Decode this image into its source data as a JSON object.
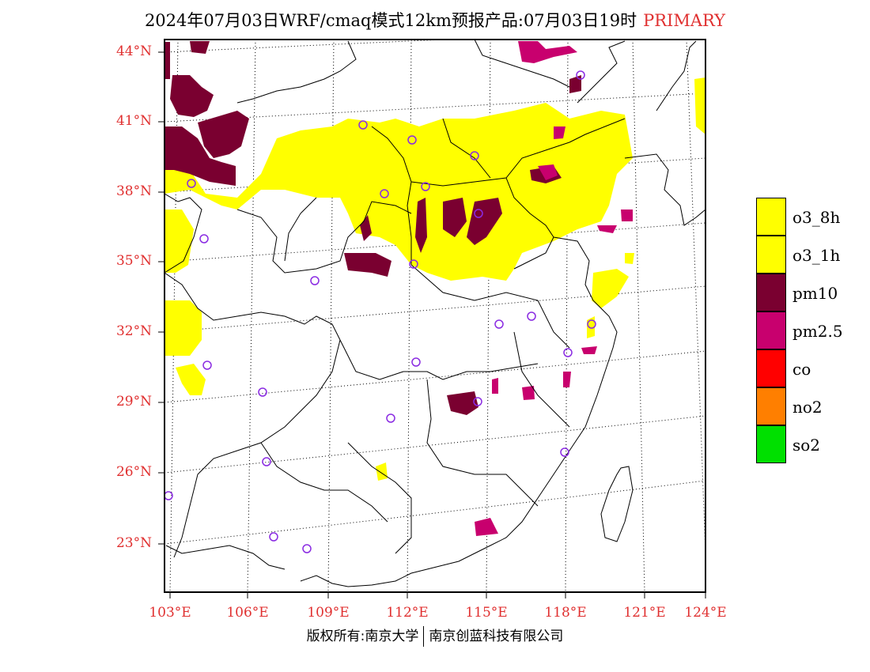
{
  "title": {
    "main": "2024年07月03日WRF/cmaq模式12km预报产品:07月03日19时",
    "tag": "PRIMARY"
  },
  "lat_labels": [
    "44°N",
    "41°N",
    "38°N",
    "35°N",
    "32°N",
    "29°N",
    "26°N",
    "23°N"
  ],
  "lon_labels": [
    "103°E",
    "106°E",
    "109°E",
    "112°E",
    "115°E",
    "118°E",
    "121°E",
    "124°E"
  ],
  "legend": [
    {
      "label": "o3_8h",
      "color": "#ffff00"
    },
    {
      "label": "o3_1h",
      "color": "#ffff00"
    },
    {
      "label": "pm10",
      "color": "#7a0030"
    },
    {
      "label": "pm2.5",
      "color": "#c8006e"
    },
    {
      "label": "co",
      "color": "#ff0000"
    },
    {
      "label": "no2",
      "color": "#ff7f00"
    },
    {
      "label": "so2",
      "color": "#00e000"
    }
  ],
  "footer": {
    "left": "版权所有:南京大学",
    "right": "南京创蓝科技有限公司"
  },
  "colors": {
    "accent_red": "#e03030",
    "station_marker": "#8a2be2"
  }
}
